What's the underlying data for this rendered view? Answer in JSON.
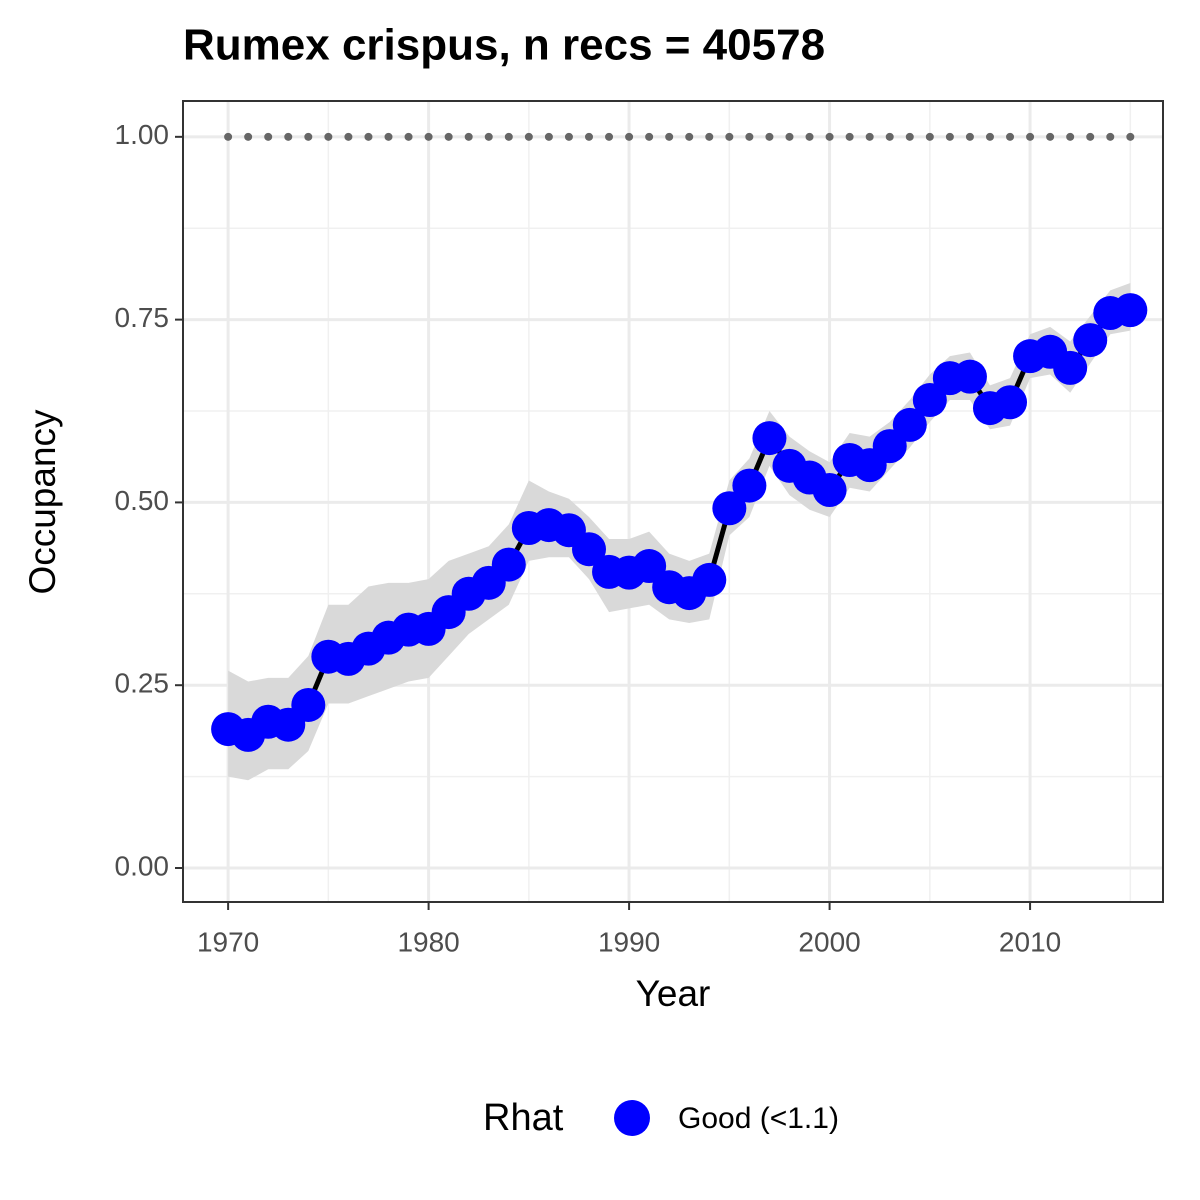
{
  "chart_data": {
    "type": "line",
    "title": "Rumex crispus, n recs = 40578",
    "xlabel": "Year",
    "ylabel": "Occupancy",
    "legend_title": "Rhat",
    "legend_position": "bottom",
    "grid": true,
    "x": [
      1970,
      1971,
      1972,
      1973,
      1974,
      1975,
      1976,
      1977,
      1978,
      1979,
      1980,
      1981,
      1982,
      1983,
      1984,
      1985,
      1986,
      1987,
      1988,
      1989,
      1990,
      1991,
      1992,
      1993,
      1994,
      1995,
      1996,
      1997,
      1998,
      1999,
      2000,
      2001,
      2002,
      2003,
      2004,
      2005,
      2006,
      2007,
      2008,
      2009,
      2010,
      2011,
      2012,
      2013,
      2014,
      2015
    ],
    "series": [
      {
        "name": "Good (<1.1)",
        "color": "#0000ff",
        "line_color": "#000000",
        "values": [
          0.19,
          0.182,
          0.2,
          0.196,
          0.223,
          0.289,
          0.286,
          0.3,
          0.315,
          0.326,
          0.327,
          0.35,
          0.375,
          0.39,
          0.415,
          0.465,
          0.469,
          0.462,
          0.436,
          0.405,
          0.404,
          0.413,
          0.384,
          0.376,
          0.394,
          0.492,
          0.523,
          0.588,
          0.55,
          0.534,
          0.517,
          0.558,
          0.551,
          0.577,
          0.606,
          0.64,
          0.67,
          0.672,
          0.629,
          0.637,
          0.7,
          0.706,
          0.684,
          0.722,
          0.759,
          0.763
        ]
      }
    ],
    "ribbon": {
      "color": "#d9d9d9",
      "lower": [
        0.125,
        0.12,
        0.135,
        0.135,
        0.16,
        0.225,
        0.225,
        0.235,
        0.245,
        0.255,
        0.26,
        0.29,
        0.32,
        0.34,
        0.36,
        0.42,
        0.425,
        0.425,
        0.395,
        0.35,
        0.355,
        0.36,
        0.34,
        0.335,
        0.34,
        0.455,
        0.48,
        0.55,
        0.51,
        0.49,
        0.48,
        0.52,
        0.515,
        0.545,
        0.575,
        0.61,
        0.64,
        0.64,
        0.6,
        0.605,
        0.67,
        0.675,
        0.65,
        0.69,
        0.73,
        0.735
      ],
      "upper": [
        0.27,
        0.255,
        0.26,
        0.26,
        0.29,
        0.36,
        0.36,
        0.385,
        0.39,
        0.39,
        0.395,
        0.42,
        0.43,
        0.44,
        0.47,
        0.53,
        0.515,
        0.505,
        0.48,
        0.45,
        0.45,
        0.46,
        0.43,
        0.42,
        0.43,
        0.53,
        0.56,
        0.625,
        0.59,
        0.57,
        0.555,
        0.595,
        0.59,
        0.61,
        0.64,
        0.675,
        0.7,
        0.705,
        0.66,
        0.67,
        0.73,
        0.74,
        0.72,
        0.755,
        0.79,
        0.8
      ]
    },
    "reference_line": {
      "color": "#666666",
      "values": [
        1,
        1,
        1,
        1,
        1,
        1,
        1,
        1,
        1,
        1,
        1,
        1,
        1,
        1,
        1,
        1,
        1,
        1,
        1,
        1,
        1,
        1,
        1,
        1,
        1,
        1,
        1,
        1,
        1,
        1,
        1,
        1,
        1,
        1,
        1,
        1,
        1,
        1,
        1,
        1,
        1,
        1,
        1,
        1,
        1,
        1
      ]
    },
    "xlim": [
      1967.75,
      2016.63
    ],
    "xticks": [
      1970,
      1980,
      1990,
      2000,
      2010
    ],
    "xminor": [
      1975,
      1985,
      1995,
      2005,
      2015
    ],
    "ylim": [
      -0.0465,
      1.049
    ],
    "yticks": [
      {
        "value": 0,
        "label": "0.00"
      },
      {
        "value": 0.25,
        "label": "0.25"
      },
      {
        "value": 0.5,
        "label": "0.50"
      },
      {
        "value": 0.75,
        "label": "0.75"
      },
      {
        "value": 1,
        "label": "1.00"
      }
    ],
    "yminor": [
      0.125,
      0.375,
      0.625,
      0.875
    ]
  }
}
